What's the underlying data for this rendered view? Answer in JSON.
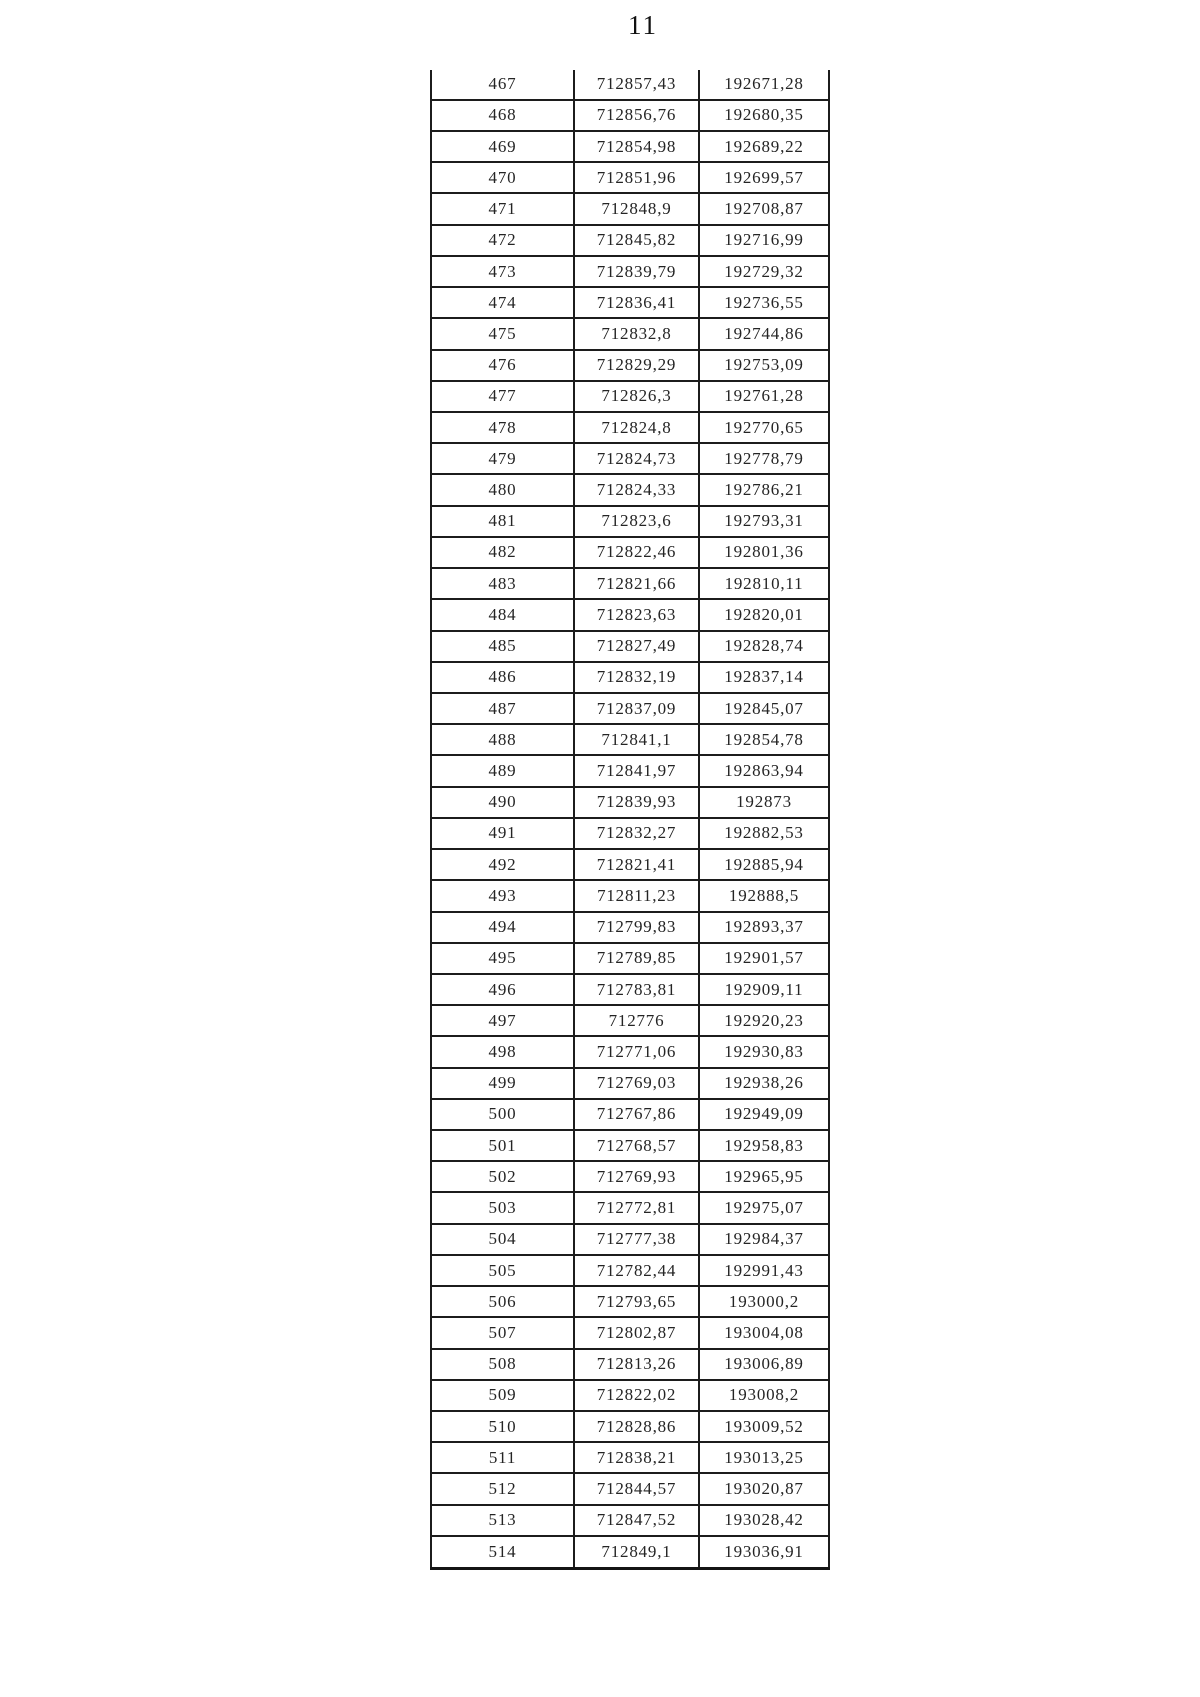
{
  "page": {
    "number_label": "11"
  },
  "table": {
    "rows": [
      [
        "467",
        "712857,43",
        "192671,28"
      ],
      [
        "468",
        "712856,76",
        "192680,35"
      ],
      [
        "469",
        "712854,98",
        "192689,22"
      ],
      [
        "470",
        "712851,96",
        "192699,57"
      ],
      [
        "471",
        "712848,9",
        "192708,87"
      ],
      [
        "472",
        "712845,82",
        "192716,99"
      ],
      [
        "473",
        "712839,79",
        "192729,32"
      ],
      [
        "474",
        "712836,41",
        "192736,55"
      ],
      [
        "475",
        "712832,8",
        "192744,86"
      ],
      [
        "476",
        "712829,29",
        "192753,09"
      ],
      [
        "477",
        "712826,3",
        "192761,28"
      ],
      [
        "478",
        "712824,8",
        "192770,65"
      ],
      [
        "479",
        "712824,73",
        "192778,79"
      ],
      [
        "480",
        "712824,33",
        "192786,21"
      ],
      [
        "481",
        "712823,6",
        "192793,31"
      ],
      [
        "482",
        "712822,46",
        "192801,36"
      ],
      [
        "483",
        "712821,66",
        "192810,11"
      ],
      [
        "484",
        "712823,63",
        "192820,01"
      ],
      [
        "485",
        "712827,49",
        "192828,74"
      ],
      [
        "486",
        "712832,19",
        "192837,14"
      ],
      [
        "487",
        "712837,09",
        "192845,07"
      ],
      [
        "488",
        "712841,1",
        "192854,78"
      ],
      [
        "489",
        "712841,97",
        "192863,94"
      ],
      [
        "490",
        "712839,93",
        "192873"
      ],
      [
        "491",
        "712832,27",
        "192882,53"
      ],
      [
        "492",
        "712821,41",
        "192885,94"
      ],
      [
        "493",
        "712811,23",
        "192888,5"
      ],
      [
        "494",
        "712799,83",
        "192893,37"
      ],
      [
        "495",
        "712789,85",
        "192901,57"
      ],
      [
        "496",
        "712783,81",
        "192909,11"
      ],
      [
        "497",
        "712776",
        "192920,23"
      ],
      [
        "498",
        "712771,06",
        "192930,83"
      ],
      [
        "499",
        "712769,03",
        "192938,26"
      ],
      [
        "500",
        "712767,86",
        "192949,09"
      ],
      [
        "501",
        "712768,57",
        "192958,83"
      ],
      [
        "502",
        "712769,93",
        "192965,95"
      ],
      [
        "503",
        "712772,81",
        "192975,07"
      ],
      [
        "504",
        "712777,38",
        "192984,37"
      ],
      [
        "505",
        "712782,44",
        "192991,43"
      ],
      [
        "506",
        "712793,65",
        "193000,2"
      ],
      [
        "507",
        "712802,87",
        "193004,08"
      ],
      [
        "508",
        "712813,26",
        "193006,89"
      ],
      [
        "509",
        "712822,02",
        "193008,2"
      ],
      [
        "510",
        "712828,86",
        "193009,52"
      ],
      [
        "511",
        "712838,21",
        "193013,25"
      ],
      [
        "512",
        "712844,57",
        "193020,87"
      ],
      [
        "513",
        "712847,52",
        "193028,42"
      ],
      [
        "514",
        "712849,1",
        "193036,91"
      ]
    ]
  }
}
